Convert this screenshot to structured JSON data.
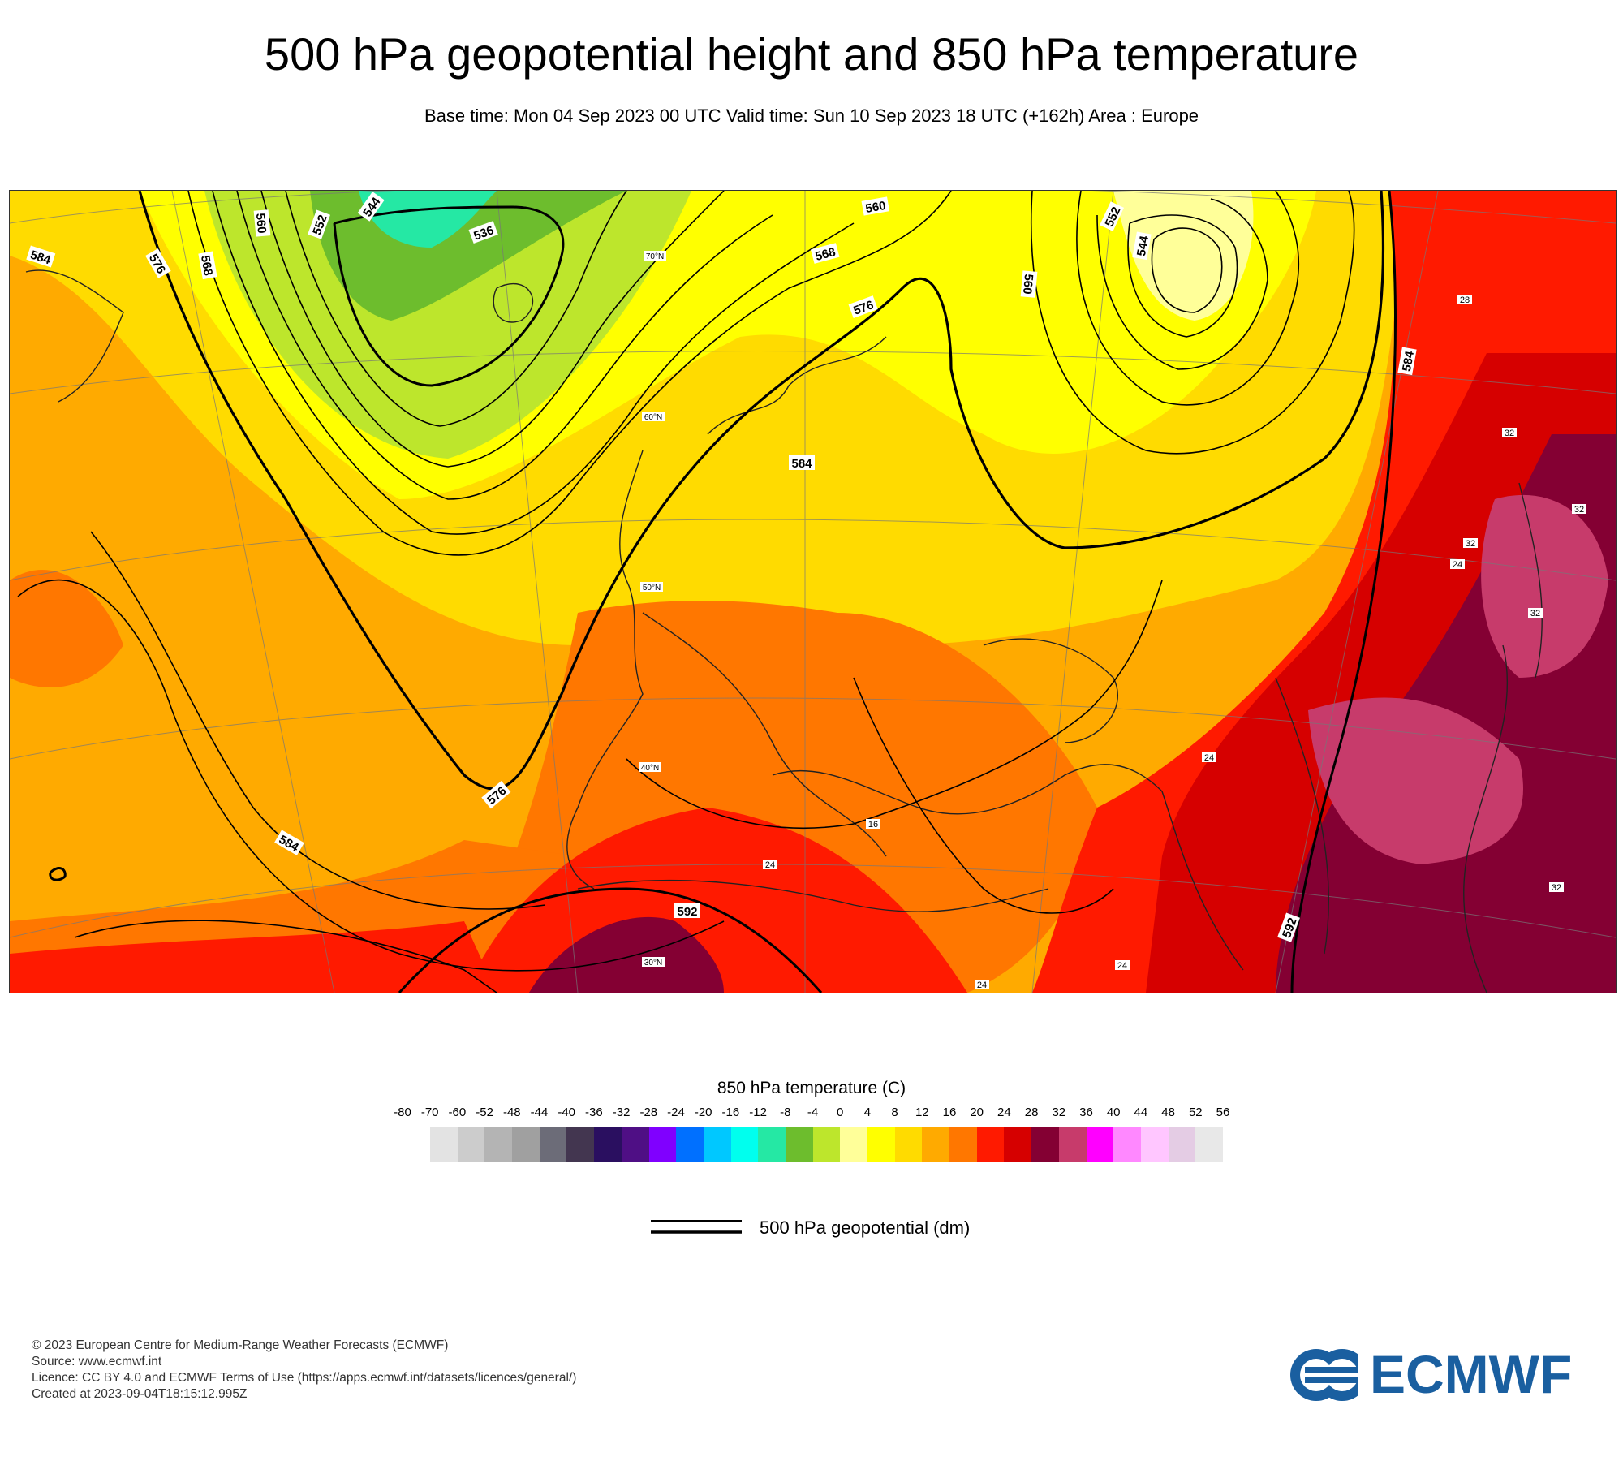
{
  "header": {
    "title": "500 hPa geopotential height and 850 hPa temperature",
    "subtitle": "Base time: Mon 04 Sep 2023 00 UTC Valid time: Sun 10 Sep 2023 18 UTC (+162h) Area : Europe"
  },
  "map": {
    "contour_labels": [
      "584",
      "576",
      "568",
      "560",
      "552",
      "544",
      "536",
      "560",
      "568",
      "576",
      "584",
      "552",
      "544",
      "560",
      "584",
      "576",
      "584",
      "592",
      "592"
    ],
    "latitude_labels": [
      "70°N",
      "60°N",
      "50°N",
      "40°N",
      "30°N"
    ],
    "temperature_labels": [
      "24",
      "24",
      "24",
      "28",
      "32",
      "32",
      "32",
      "32",
      "32",
      "24",
      "16",
      "24"
    ]
  },
  "legend": {
    "title": "850 hPa temperature (C)",
    "ticks": [
      "-80",
      "-70",
      "-60",
      "-52",
      "-48",
      "-44",
      "-40",
      "-36",
      "-32",
      "-28",
      "-24",
      "-20",
      "-16",
      "-12",
      "-8",
      "-4",
      "0",
      "4",
      "8",
      "12",
      "16",
      "20",
      "24",
      "28",
      "32",
      "36",
      "40",
      "44",
      "48",
      "52",
      "56"
    ],
    "colors": [
      "#e3e3e3",
      "#cccccc",
      "#b4b4b4",
      "#a0a0a0",
      "#6c6c78",
      "#433650",
      "#2a0f60",
      "#4f0f85",
      "#8000ff",
      "#0070ff",
      "#00c8ff",
      "#00ffee",
      "#25e8a4",
      "#6dbd2d",
      "#bde62c",
      "#ffff99",
      "#ffff00",
      "#ffdb00",
      "#ffaa00",
      "#ff7700",
      "#ff1a00",
      "#d60000",
      "#840033",
      "#c73b6b",
      "#ff00ff",
      "#ff88ff",
      "#ffc6ff",
      "#e4cce4",
      "#e8e8e8"
    ],
    "contour_label": "500 hPa geopotential (dm)"
  },
  "footer": {
    "copyright": "© 2023 European Centre for Medium-Range Weather Forecasts (ECMWF)",
    "source": "Source: www.ecmwf.int",
    "licence": "Licence: CC BY 4.0 and ECMWF Terms of Use (https://apps.ecmwf.int/datasets/licences/general/)",
    "created": "Created at 2023-09-04T18:15:12.995Z"
  },
  "logo": {
    "text": "ECMWF",
    "color": "#1a5fa0"
  }
}
